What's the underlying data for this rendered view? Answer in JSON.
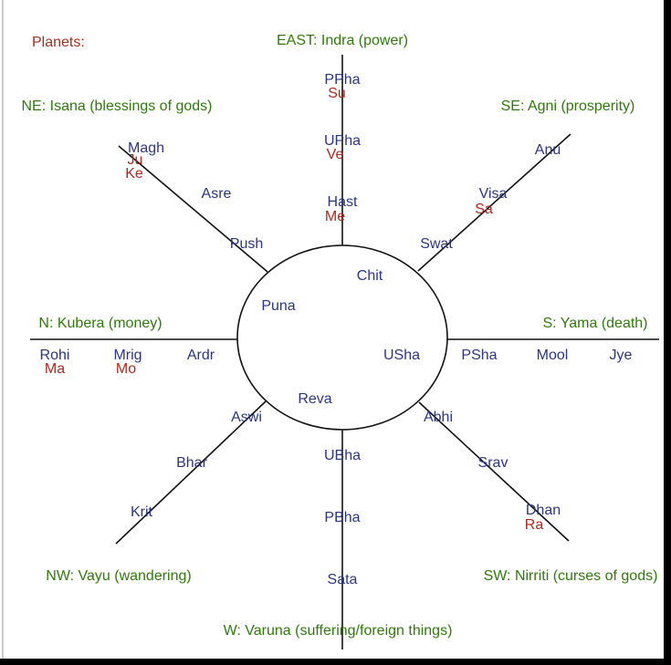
{
  "title": "Planets:",
  "directions": [
    "EAST: Indra (power)",
    "NE: Isana (blessings of gods)",
    "SE: Agni (prosperity)",
    "N: Kubera (money)",
    "S: Yama (death)",
    "NW: Vayu (wandering)",
    "SW: Nirriti (curses of gods)",
    "W: Varuna (suffering/foreign things)"
  ],
  "nakshatras": [
    "PPha",
    "UPha",
    "Hast",
    "Chit",
    "Push",
    "Asre",
    "Magh",
    "Swat",
    "Visa",
    "Anu",
    "Puna",
    "Rohi",
    "Mrig",
    "Ardr",
    "USha",
    "PSha",
    "Mool",
    "Jye",
    "Reva",
    "Aswi",
    "Bhar",
    "Krit",
    "Abhi",
    "Srav",
    "Dhan",
    "UBha",
    "PBha",
    "Sata"
  ],
  "planets": [
    "Su",
    "Ve",
    "Me",
    "Ju",
    "Ke",
    "Sa",
    "Ma",
    "Mo",
    "Ra"
  ]
}
